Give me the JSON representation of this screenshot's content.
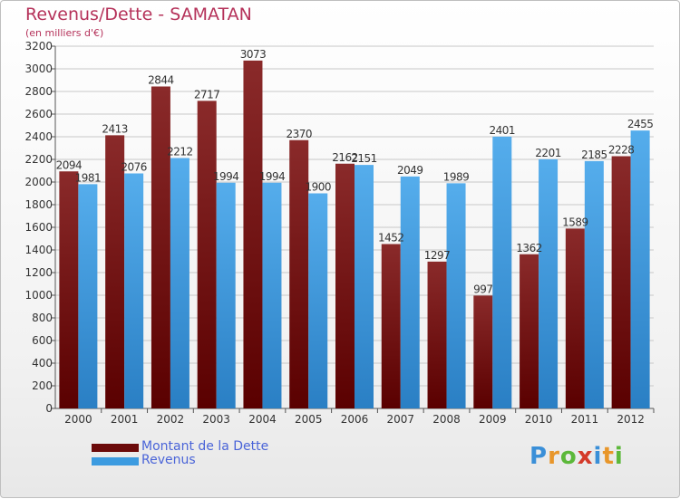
{
  "title": "Revenus/Dette - SAMATAN",
  "subtitle": "(en milliers d'€)",
  "logo_text": "Proxiti",
  "colors": {
    "title": "#b5325a",
    "dette": "#7a1616",
    "revenus": "#3c9be0",
    "legend_text": "#4a64d8",
    "grid": "#c8c8c8"
  },
  "legend": [
    {
      "label": "Montant de la Dette",
      "color": "#6b0a0a"
    },
    {
      "label": "Revenus",
      "color": "#3c9be0"
    }
  ],
  "chart_data": {
    "type": "bar",
    "title": "Revenus/Dette - SAMATAN",
    "subtitle": "(en milliers d'€)",
    "categories": [
      "2000",
      "2001",
      "2002",
      "2003",
      "2004",
      "2005",
      "2006",
      "2007",
      "2008",
      "2009",
      "2010",
      "2011",
      "2012"
    ],
    "series": [
      {
        "name": "Montant de la Dette",
        "values": [
          2094,
          2413,
          2844,
          2717,
          3073,
          2370,
          2162,
          1452,
          1297,
          997,
          1362,
          1589,
          2228
        ]
      },
      {
        "name": "Revenus",
        "values": [
          1981,
          2076,
          2212,
          1994,
          1994,
          1900,
          2151,
          2049,
          1989,
          2401,
          2201,
          2185,
          2455
        ]
      }
    ],
    "value_labels": [
      [
        "2094",
        "2413",
        "2844",
        "2717",
        "3073",
        "2370",
        "2162",
        "1452",
        "1297",
        "997",
        "1362",
        "1589",
        "2228"
      ],
      [
        "1981",
        "2076",
        "2212",
        "1994",
        "1994",
        "1900",
        "2151",
        "2049",
        "1989",
        "2401",
        "2201",
        "2185",
        "2455"
      ]
    ],
    "ylim": [
      0,
      3200
    ],
    "ytick_step": 200,
    "yticks": [
      "0",
      "200",
      "400",
      "600",
      "800",
      "1000",
      "1200",
      "1400",
      "1600",
      "1800",
      "2000",
      "2200",
      "2400",
      "2600",
      "2800",
      "3000",
      "3200"
    ],
    "grid": true,
    "legend_position": "bottom-left"
  }
}
